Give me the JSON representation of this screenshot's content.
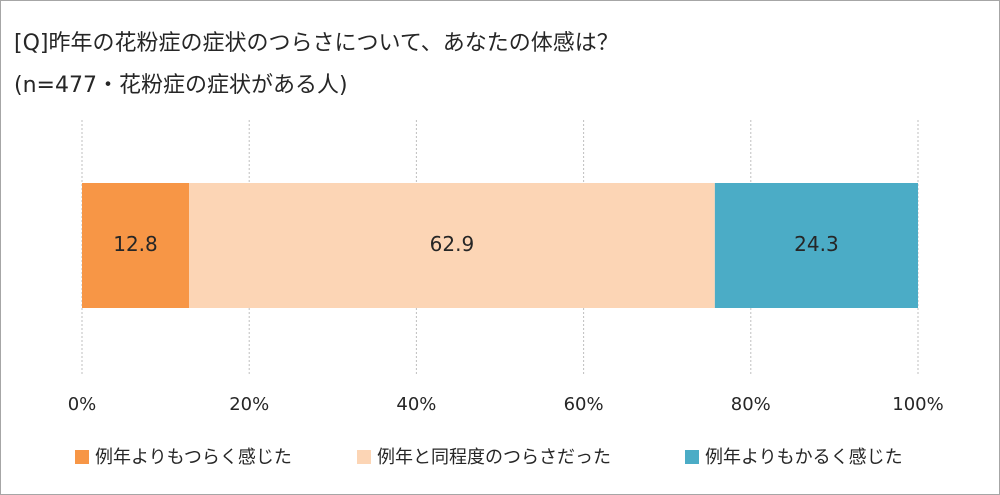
{
  "chart_data": {
    "type": "bar",
    "orientation": "horizontal",
    "stacked": true,
    "title": "[Q]昨年の花粉症の症状のつらさについて、あなたの体感は？",
    "subtitle": "(n=477・花粉症の症状がある人)",
    "categories": [
      null
    ],
    "series": [
      {
        "name": "例年よりもつらく感じた",
        "color": "#f79646",
        "values": [
          12.8
        ]
      },
      {
        "name": "例年と同程度のつらさだった",
        "color": "#fcd5b5",
        "values": [
          62.9
        ]
      },
      {
        "name": "例年よりもかるく感じた",
        "color": "#4bacc6",
        "values": [
          24.3
        ]
      }
    ],
    "xlim": [
      0,
      100
    ],
    "xticks": [
      {
        "value": 0,
        "label": "0%"
      },
      {
        "value": 20,
        "label": "20%"
      },
      {
        "value": 40,
        "label": "40%"
      },
      {
        "value": 60,
        "label": "60%"
      },
      {
        "value": 80,
        "label": "80%"
      },
      {
        "value": 100,
        "label": "100%"
      }
    ],
    "grid": true,
    "legend": "bottom"
  }
}
